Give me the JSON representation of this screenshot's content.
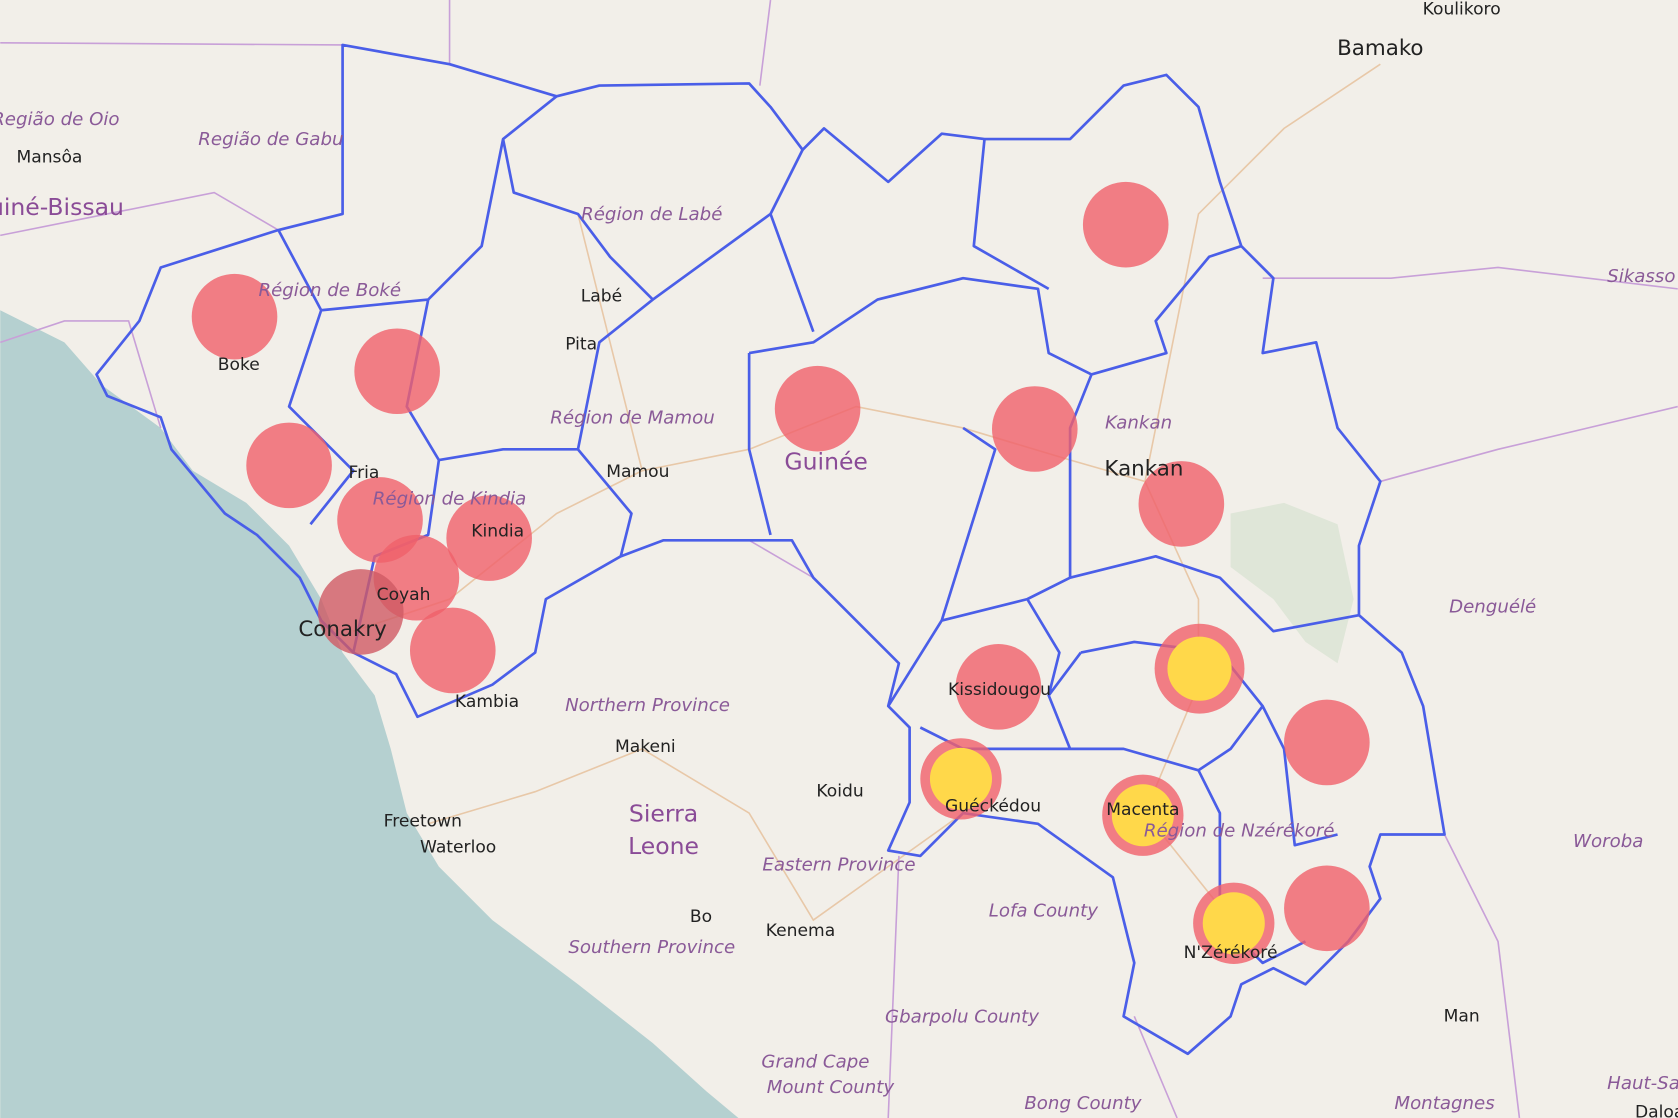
{
  "map": {
    "labels": [
      "Koulikoro",
      "Bamako",
      "Região de Oio",
      "Mansôa",
      "Guiné-Bissau",
      "Região de Gabu",
      "Région de Boké",
      "Boke",
      "Région de Labé",
      "Labé",
      "Pita",
      "Région de Mamou",
      "Mamou",
      "Fria",
      "Région de Kindia",
      "Kindia",
      "Coyah",
      "Conakry",
      "Kambia",
      "Northern Province",
      "Makeni",
      "Sierra",
      "Leone",
      "Koidu",
      "Freetown",
      "Waterloo",
      "Eastern Province",
      "Bo",
      "Kenema",
      "Southern Province",
      "Guinée",
      "Kankan",
      "Kankan",
      "Kissidougou",
      "Guéckédou",
      "Macenta",
      "Région de Nzérékoré",
      "N'Zérékoré",
      "Lofa County",
      "Gbarpolu County",
      "Grand Cape",
      "Mount County",
      "Bong County",
      "Denguélé",
      "Woroba",
      "Man",
      "Sikasso",
      "Haut-Sassandra",
      "Daloa",
      "Montagnes"
    ]
  }
}
